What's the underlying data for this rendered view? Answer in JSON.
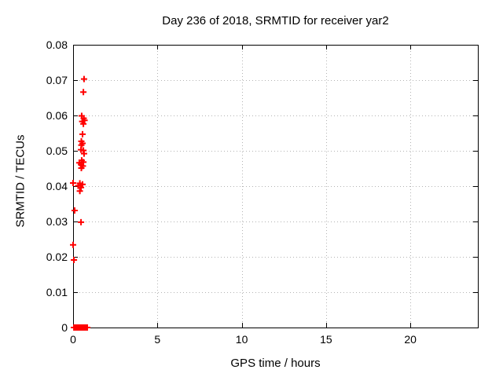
{
  "window": {
    "background": "#ffffff"
  },
  "chart_data": {
    "type": "scatter",
    "title": "Day 236 of 2018, SRMTID for receiver yar2",
    "xlabel": "GPS time / hours",
    "ylabel": "SRMTID / TECUs",
    "xlim": [
      0,
      24
    ],
    "ylim": [
      0,
      0.08
    ],
    "x_ticks": [
      0,
      5,
      10,
      15,
      20
    ],
    "x_tick_labels": [
      "0",
      "5",
      "10",
      "15",
      "20"
    ],
    "y_ticks": [
      0,
      0.01,
      0.02,
      0.03,
      0.04,
      0.05,
      0.06,
      0.07,
      0.08
    ],
    "y_tick_labels": [
      "0",
      "0.01",
      "0.02",
      "0.03",
      "0.04",
      "0.05",
      "0.06",
      "0.07",
      "0.08"
    ],
    "grid": true,
    "grid_color": "#b3b3b3",
    "border_color": "#000000",
    "marker": {
      "shape": "plus",
      "color": "#ff0000",
      "size": 4,
      "stroke_width": 2
    },
    "series": [
      {
        "name": "SRMTID",
        "points": [
          [
            0.65,
            0.0703
          ],
          [
            0.61,
            0.0666
          ],
          [
            0.51,
            0.0599
          ],
          [
            0.63,
            0.0592
          ],
          [
            0.68,
            0.0586
          ],
          [
            0.54,
            0.0583
          ],
          [
            0.61,
            0.0576
          ],
          [
            0.56,
            0.0547
          ],
          [
            0.49,
            0.0527
          ],
          [
            0.56,
            0.0521
          ],
          [
            0.49,
            0.0516
          ],
          [
            0.47,
            0.0503
          ],
          [
            0.61,
            0.0501
          ],
          [
            0.65,
            0.0492
          ],
          [
            0.51,
            0.0473
          ],
          [
            0.61,
            0.0468
          ],
          [
            0.37,
            0.0466
          ],
          [
            0.47,
            0.0461
          ],
          [
            0.58,
            0.0457
          ],
          [
            0.49,
            0.0451
          ],
          [
            0.0,
            0.0409
          ],
          [
            0.4,
            0.0408
          ],
          [
            0.56,
            0.0405
          ],
          [
            0.3,
            0.0401
          ],
          [
            0.47,
            0.0396
          ],
          [
            0.4,
            0.0386
          ],
          [
            0.09,
            0.0331
          ],
          [
            0.47,
            0.0298
          ],
          [
            0.0,
            0.0234
          ],
          [
            0.05,
            0.0191
          ],
          [
            0.05,
            0.0
          ],
          [
            0.11,
            0.0
          ],
          [
            0.17,
            0.0
          ],
          [
            0.23,
            0.0
          ],
          [
            0.29,
            0.0
          ],
          [
            0.35,
            0.0
          ],
          [
            0.41,
            0.0
          ],
          [
            0.47,
            0.0
          ],
          [
            0.53,
            0.0
          ],
          [
            0.59,
            0.0
          ],
          [
            0.65,
            0.0
          ],
          [
            0.71,
            0.0
          ],
          [
            0.77,
            0.0
          ],
          [
            0.84,
            0.0
          ]
        ]
      }
    ]
  }
}
